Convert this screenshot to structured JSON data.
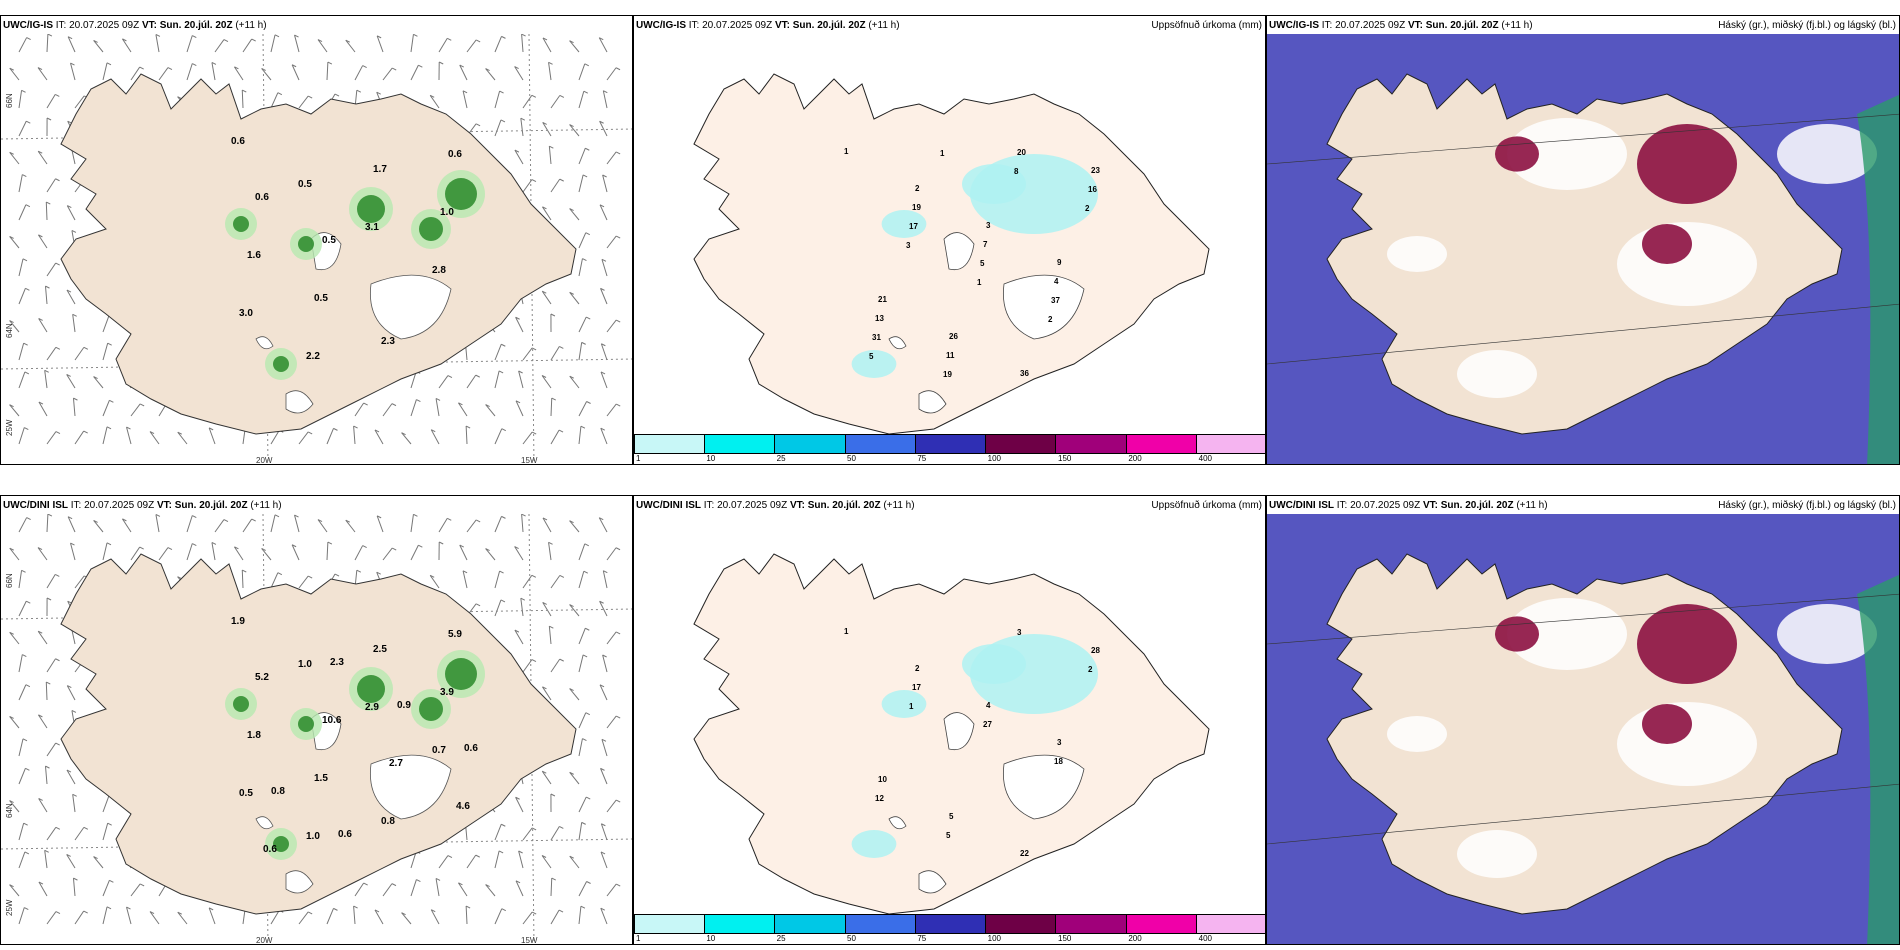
{
  "rows": [
    {
      "model": "UWC/IG-IS",
      "it_label": "IT:",
      "it_value": "20.07.2025 09Z",
      "vt_label": "VT:",
      "vt_value": "Sun. 20.júl. 20Z",
      "lead": "(+11 h)",
      "precip_labels": [
        "0.6",
        "0.5",
        "3.1",
        "2.8",
        "3.0",
        "2.2",
        "1.7",
        "1.0",
        "1.6",
        "0.5",
        "2.3",
        "0.6",
        "0.6",
        "0.5"
      ],
      "accum_labels": [
        "1",
        "2",
        "3",
        "9",
        "21",
        "26",
        "36",
        "23",
        "19",
        "7",
        "4",
        "13",
        "11",
        "20",
        "16",
        "17",
        "5",
        "37",
        "31",
        "19",
        "8",
        "2",
        "3",
        "1",
        "2",
        "5",
        "1"
      ]
    },
    {
      "model": "UWC/DINI ISL",
      "it_label": "IT:",
      "it_value": "20.07.2025 09Z",
      "vt_label": "VT:",
      "vt_value": "Sun. 20.júl. 20Z",
      "lead": "(+11 h)",
      "precip_labels": [
        "1.9",
        "1.0",
        "2.9",
        "0.7",
        "0.5",
        "1.0",
        "2.5",
        "3.9",
        "1.8",
        "1.5",
        "0.8",
        "5.9",
        "5.2",
        "10.6",
        "2.7",
        "4.6",
        "0.6",
        "2.3",
        "0.9",
        "0.6",
        "0.8",
        "0.6"
      ],
      "accum_labels": [
        "1",
        "2",
        "4",
        "3",
        "10",
        "5",
        "22",
        "28",
        "17",
        "27",
        "18",
        "12",
        "5",
        "3",
        "2",
        "1"
      ]
    }
  ],
  "panel_titles": {
    "precip": "Uppsöfnuð úrkoma (mm)",
    "cloud": "Háský (gr.), miðský (fj.bl.) og lágský (bl.)"
  },
  "axis_labels": {
    "lon": [
      "20W",
      "15W"
    ],
    "lat": [
      "66N",
      "64N",
      "25W"
    ]
  },
  "colorbar": {
    "ticks": [
      "1",
      "10",
      "25",
      "50",
      "75",
      "100",
      "150",
      "200",
      "400"
    ],
    "colors": [
      "#c8f7f7",
      "#00f0f0",
      "#00c8e6",
      "#3a6ee8",
      "#2f2fb4",
      "#6e0046",
      "#a0007a",
      "#f000a8",
      "#f5b4f0"
    ]
  },
  "colors": {
    "land": "#f2e3d3",
    "land_light": "#fdf0e6",
    "cloud_low": "#5656c0",
    "cloud_mid": "#ffffff",
    "cloud_high": "#8c1040",
    "precip_green": "#2a8a2a"
  }
}
